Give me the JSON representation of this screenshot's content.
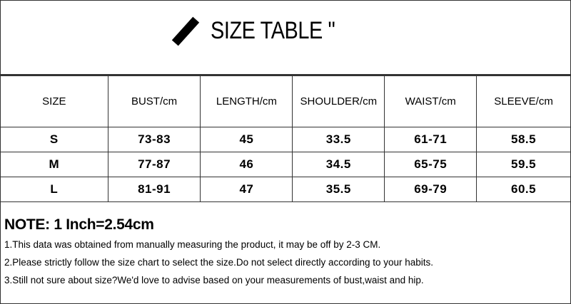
{
  "title": "SIZE TABLE \"",
  "table": {
    "headers": [
      "SIZE",
      "BUST/cm",
      "LENGTH/cm",
      "SHOULDER/cm",
      "WAIST/cm",
      "SLEEVE/cm"
    ],
    "rows": [
      [
        "S",
        "73-83",
        "45",
        "33.5",
        "61-71",
        "58.5"
      ],
      [
        "M",
        "77-87",
        "46",
        "34.5",
        "65-75",
        "59.5"
      ],
      [
        "L",
        "81-91",
        "47",
        "35.5",
        "69-79",
        "60.5"
      ]
    ]
  },
  "notes": {
    "title": "NOTE: 1 Inch=2.54cm",
    "items": [
      "1.This data was obtained from manually measuring the product, it may be off by 2-3 CM.",
      "2.Please strictly follow the size chart to select the size.Do not select directly according to your habits.",
      "3.Still not sure about size?We'd love to advise based on your measurements of bust,waist and hip."
    ]
  }
}
